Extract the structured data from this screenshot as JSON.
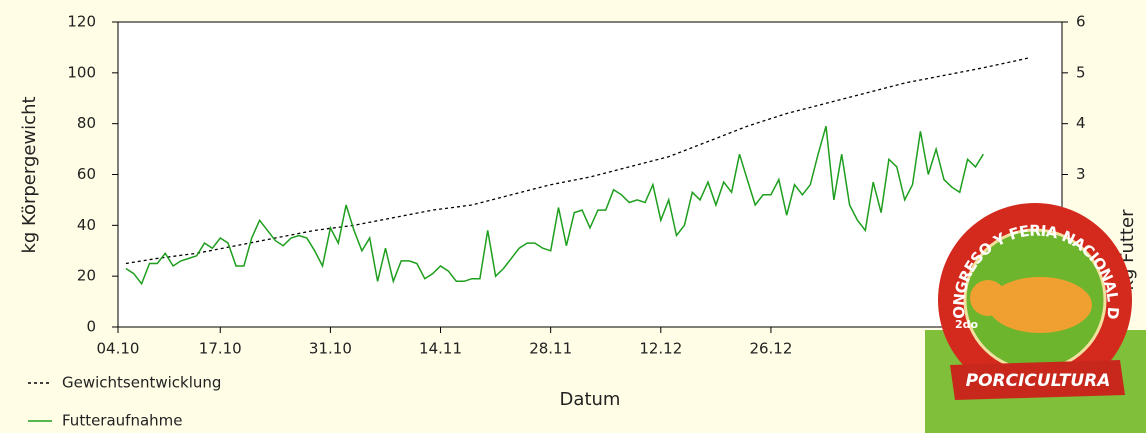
{
  "chart_data": {
    "type": "line",
    "y_label": "kg Körpergewicht",
    "x_label": "Datum",
    "y2_label": "kg Futter",
    "xlim": [
      0,
      120
    ],
    "xticks": [
      {
        "value": 0,
        "label": "04.10"
      },
      {
        "value": 13,
        "label": "17.10"
      },
      {
        "value": 27,
        "label": "31.10"
      },
      {
        "value": 41,
        "label": "14.11"
      },
      {
        "value": 55,
        "label": "28.11"
      },
      {
        "value": 69,
        "label": "12.12"
      },
      {
        "value": 83,
        "label": "26.12"
      }
    ],
    "ylim": [
      0,
      120
    ],
    "yticks": [
      0,
      20,
      40,
      60,
      80,
      100,
      120
    ],
    "y2lim": [
      0,
      6
    ],
    "y2ticks": [
      0,
      1,
      2,
      3,
      4,
      5,
      6
    ],
    "series": [
      {
        "name": "Gewichtsentwicklung",
        "color": "#000000",
        "dashed": true,
        "x": [
          1,
          5,
          10,
          15,
          20,
          25,
          30,
          35,
          40,
          45,
          50,
          55,
          60,
          65,
          70,
          75,
          80,
          85,
          90,
          95,
          100,
          105,
          110,
          116
        ],
        "values": [
          25,
          27,
          29,
          32,
          35,
          38,
          40,
          43,
          46,
          48,
          52,
          56,
          59,
          63,
          67,
          73,
          79,
          84,
          88,
          92,
          96,
          99,
          102,
          106
        ]
      },
      {
        "name": "Futteraufnahme",
        "color": "#1e9e1e",
        "axis": "y2",
        "x": [
          1,
          2,
          3,
          4,
          5,
          6,
          7,
          8,
          9,
          10,
          11,
          12,
          13,
          14,
          15,
          16,
          17,
          18,
          19,
          20,
          21,
          22,
          23,
          24,
          25,
          26,
          27,
          28,
          29,
          30,
          31,
          32,
          33,
          34,
          35,
          36,
          37,
          38,
          39,
          40,
          41,
          42,
          43,
          44,
          45,
          46,
          47,
          48,
          49,
          50,
          51,
          52,
          53,
          54,
          55,
          56,
          57,
          58,
          59,
          60,
          61,
          62,
          63,
          64,
          65,
          66,
          67,
          68,
          69,
          70,
          71,
          72,
          73,
          74,
          75,
          76,
          77,
          78,
          79,
          80,
          81,
          82,
          83,
          84,
          85,
          86,
          87,
          88,
          89,
          90,
          91,
          92,
          93,
          94,
          95,
          96,
          97,
          98,
          99,
          100,
          101,
          102,
          103,
          104,
          105,
          106,
          107,
          108,
          109,
          110
        ],
        "values": [
          1.15,
          1.05,
          0.85,
          1.25,
          1.25,
          1.45,
          1.2,
          1.3,
          1.35,
          1.4,
          1.65,
          1.55,
          1.75,
          1.65,
          1.2,
          1.2,
          1.75,
          2.1,
          1.9,
          1.7,
          1.6,
          1.75,
          1.8,
          1.75,
          1.5,
          1.2,
          1.95,
          1.65,
          2.4,
          1.9,
          1.5,
          1.75,
          0.9,
          1.55,
          0.9,
          1.3,
          1.3,
          1.25,
          0.95,
          1.05,
          1.2,
          1.1,
          0.9,
          0.9,
          0.95,
          0.95,
          1.9,
          1.0,
          1.15,
          1.35,
          1.55,
          1.65,
          1.65,
          1.55,
          1.5,
          2.35,
          1.6,
          2.25,
          2.3,
          1.95,
          2.3,
          2.3,
          2.7,
          2.6,
          2.45,
          2.5,
          2.45,
          2.8,
          2.1,
          2.5,
          1.8,
          2.0,
          2.65,
          2.5,
          2.85,
          2.4,
          2.85,
          2.65,
          3.4,
          2.9,
          2.4,
          2.6,
          2.6,
          2.9,
          2.2,
          2.8,
          2.6,
          2.8,
          3.4,
          3.95,
          2.5,
          3.4,
          2.4,
          2.1,
          1.9,
          2.85,
          2.25,
          3.3,
          3.15,
          2.5,
          2.8,
          3.85,
          3.0,
          3.5,
          2.9,
          2.75,
          2.65,
          3.3,
          3.15,
          3.4
        ]
      }
    ]
  },
  "logo": {
    "ordinal": "2do",
    "arc_text": "CONGRESO Y FERIA NACIONAL DE",
    "banner": "PORCICULTURA"
  }
}
